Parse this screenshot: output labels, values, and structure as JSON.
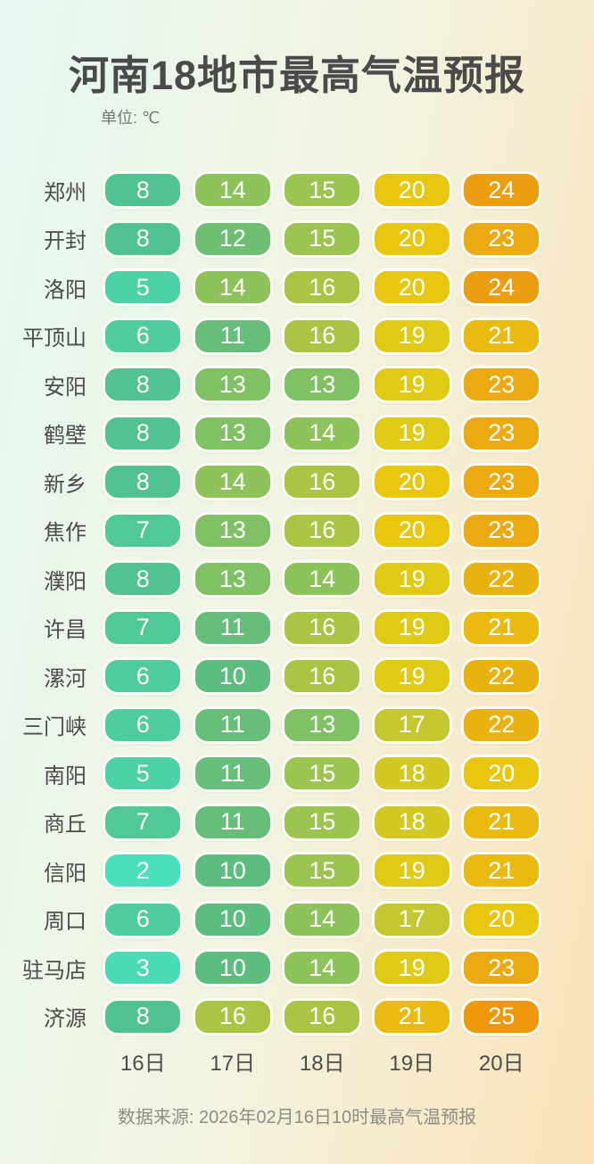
{
  "title": "河南18地市最高气温预报",
  "unit_label": "单位: ℃",
  "footer": "数据来源: 2026年02月16日10时最高气温预报",
  "chart_data": {
    "type": "heatmap",
    "title": "河南18地市最高气温预报",
    "unit": "℃",
    "x_labels": [
      "16日",
      "17日",
      "18日",
      "19日",
      "20日"
    ],
    "cities": [
      "郑州",
      "开封",
      "洛阳",
      "平顶山",
      "安阳",
      "鹤壁",
      "新乡",
      "焦作",
      "濮阳",
      "许昌",
      "漯河",
      "三门峡",
      "南阳",
      "商丘",
      "信阳",
      "周口",
      "驻马店",
      "济源"
    ],
    "values": [
      [
        8,
        14,
        15,
        20,
        24
      ],
      [
        8,
        12,
        15,
        20,
        23
      ],
      [
        5,
        14,
        16,
        20,
        24
      ],
      [
        6,
        11,
        16,
        19,
        21
      ],
      [
        8,
        13,
        13,
        19,
        23
      ],
      [
        8,
        13,
        14,
        19,
        23
      ],
      [
        8,
        14,
        16,
        20,
        23
      ],
      [
        7,
        13,
        16,
        20,
        23
      ],
      [
        8,
        13,
        14,
        19,
        22
      ],
      [
        7,
        11,
        16,
        19,
        21
      ],
      [
        6,
        10,
        16,
        19,
        22
      ],
      [
        6,
        11,
        13,
        17,
        22
      ],
      [
        5,
        11,
        15,
        18,
        20
      ],
      [
        7,
        11,
        15,
        18,
        21
      ],
      [
        2,
        10,
        15,
        19,
        21
      ],
      [
        6,
        10,
        14,
        17,
        20
      ],
      [
        3,
        10,
        14,
        19,
        23
      ],
      [
        8,
        16,
        16,
        21,
        25
      ]
    ],
    "value_range": [
      2,
      25
    ],
    "legend": "none"
  },
  "colors": {
    "background_left": "#e6f8f1",
    "background_mid": "#f2f4e2",
    "background_right": "#fbe2b8",
    "pill_border": "#fcfdf8",
    "pill_text": "#ffffff",
    "title_text": "#4a4a4a",
    "scale": {
      "2": "#49dfbc",
      "3": "#4adbb4",
      "5": "#4dd2a7",
      "6": "#4fcd9f",
      "7": "#51c897",
      "8": "#53c292",
      "10": "#5dbd7f",
      "11": "#66be7a",
      "12": "#6fbf72",
      "13": "#80c166",
      "14": "#8ec35c",
      "15": "#9cc451",
      "16": "#aac544",
      "17": "#c4c72f",
      "18": "#d4c922",
      "19": "#e1ca16",
      "20": "#e9c60f",
      "21": "#e9bb10",
      "22": "#eab211",
      "23": "#eba912",
      "24": "#eb9e12",
      "25": "#ee9708"
    }
  }
}
